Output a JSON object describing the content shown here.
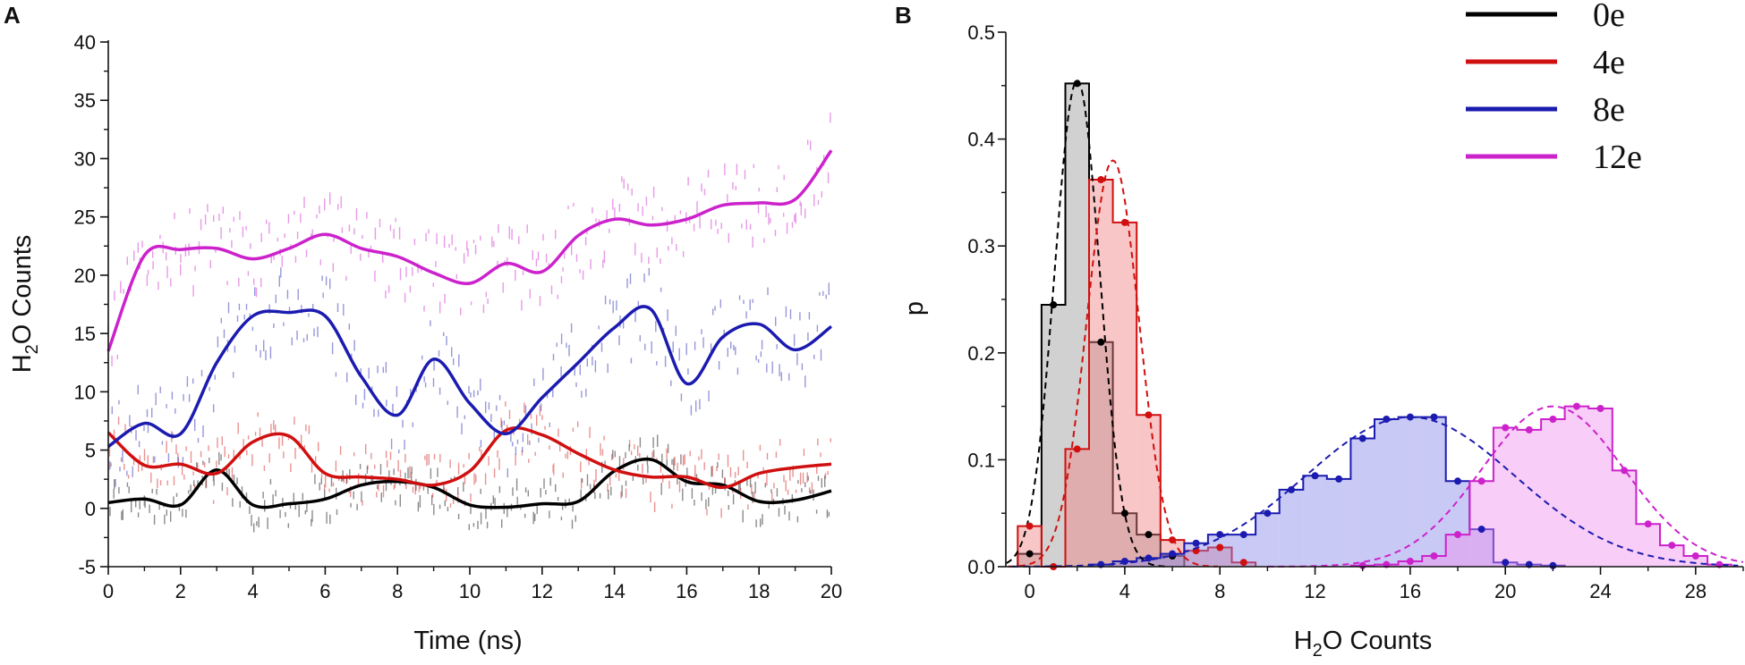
{
  "chart_data": [
    {
      "panel": "A",
      "type": "line",
      "xlabel": "Time (ns)",
      "ylabel": "H2O Counts",
      "xlim": [
        0,
        20
      ],
      "ylim": [
        -5,
        40
      ],
      "xticks": [
        0,
        2,
        4,
        6,
        8,
        10,
        12,
        14,
        16,
        18,
        20
      ],
      "yticks": [
        -5,
        0,
        5,
        10,
        15,
        20,
        25,
        30,
        35,
        40
      ],
      "series": [
        {
          "name": "0e",
          "color": "#000000",
          "x": [
            0,
            1,
            2,
            3,
            4,
            5,
            6,
            7,
            8,
            9,
            10,
            11,
            12,
            13,
            14,
            15,
            16,
            17,
            18,
            19,
            20
          ],
          "y": [
            0.5,
            0.8,
            0.3,
            3.3,
            0.3,
            0.4,
            0.8,
            2.0,
            2.3,
            1.8,
            0.3,
            0.1,
            0.4,
            0.6,
            3.2,
            4.2,
            2.3,
            2.0,
            0.6,
            0.7,
            1.5
          ]
        },
        {
          "name": "4e",
          "color": "#d01010",
          "x": [
            0,
            1,
            2,
            3,
            4,
            5,
            6,
            7,
            8,
            9,
            10,
            11,
            12,
            13,
            14,
            15,
            16,
            17,
            18,
            19,
            20
          ],
          "y": [
            6.5,
            3.7,
            3.8,
            3.0,
            5.7,
            6.2,
            3.0,
            2.7,
            2.5,
            2.0,
            3.2,
            6.7,
            6.3,
            4.7,
            3.3,
            2.7,
            2.7,
            1.8,
            3.0,
            3.5,
            3.8
          ]
        },
        {
          "name": "8e",
          "color": "#1b1bb0",
          "x": [
            0,
            1,
            2,
            3,
            4,
            5,
            6,
            7,
            8,
            9,
            10,
            11,
            12,
            13,
            14,
            15,
            16,
            17,
            18,
            19,
            20
          ],
          "y": [
            5.3,
            7.3,
            6.4,
            12.5,
            16.5,
            16.8,
            16.5,
            11.3,
            8.0,
            12.8,
            9.0,
            6.4,
            9.5,
            12.5,
            15.5,
            17.1,
            10.7,
            14.7,
            15.8,
            13.6,
            15.6
          ]
        },
        {
          "name": "12e",
          "color": "#cc22cc",
          "x": [
            0,
            1,
            2,
            3,
            4,
            5,
            6,
            7,
            8,
            9,
            10,
            11,
            12,
            13,
            14,
            15,
            16,
            17,
            18,
            19,
            20
          ],
          "y": [
            13.5,
            21.7,
            22.2,
            22.3,
            21.4,
            22.3,
            23.5,
            22.3,
            21.6,
            20.2,
            19.3,
            21.0,
            20.3,
            23.4,
            24.8,
            24.3,
            24.8,
            26.0,
            26.2,
            26.5,
            30.7
          ]
        }
      ]
    },
    {
      "panel": "B",
      "type": "bar",
      "xlabel": "H2O Counts",
      "ylabel": "p",
      "xlim": [
        -1,
        30
      ],
      "ylim": [
        0,
        0.5
      ],
      "xticks": [
        0,
        4,
        8,
        12,
        16,
        20,
        24,
        28
      ],
      "yticks": [
        0.0,
        0.1,
        0.2,
        0.3,
        0.4,
        0.5
      ],
      "ytick_labels": [
        "0.0",
        "0.1",
        "0.2",
        "0.3",
        "0.4",
        "0.5"
      ],
      "legend": {
        "placement": "top-right",
        "entries": [
          "0e",
          "4e",
          "8e",
          "12e"
        ]
      },
      "series": [
        {
          "name": "0e",
          "color": "#000000",
          "fill": "#9a9a9a",
          "x": [
            0,
            1,
            2,
            3,
            4,
            5,
            6
          ],
          "values": [
            0.012,
            0.245,
            0.452,
            0.21,
            0.05,
            0.03,
            0.01
          ],
          "fit_peak": 2.0,
          "fit_sigma": 0.95,
          "fit_amp": 0.455
        },
        {
          "name": "4e",
          "color": "#d01010",
          "fill": "#f08080",
          "x": [
            0,
            1,
            2,
            3,
            4,
            5,
            6,
            7,
            8,
            9
          ],
          "values": [
            0.038,
            0.0,
            0.11,
            0.362,
            0.322,
            0.142,
            0.025,
            0.015,
            0.018,
            0.004
          ],
          "fit_peak": 3.5,
          "fit_sigma": 1.1,
          "fit_amp": 0.38
        },
        {
          "name": "8e",
          "color": "#1b1bb0",
          "fill": "#8888e8",
          "x": [
            3,
            4,
            5,
            6,
            7,
            8,
            9,
            10,
            11,
            12,
            13,
            14,
            15,
            16,
            17,
            18,
            19,
            20,
            21,
            22
          ],
          "values": [
            0.002,
            0.005,
            0.008,
            0.012,
            0.022,
            0.03,
            0.03,
            0.05,
            0.072,
            0.085,
            0.082,
            0.12,
            0.138,
            0.14,
            0.14,
            0.08,
            0.035,
            0.004,
            0.002,
            0.001
          ],
          "fit_peak": 16.0,
          "fit_sigma": 4.4,
          "fit_amp": 0.14
        },
        {
          "name": "12e",
          "color": "#cc22cc",
          "fill": "#f090f0",
          "x": [
            14,
            15,
            16,
            17,
            18,
            19,
            20,
            21,
            22,
            23,
            24,
            25,
            26,
            27,
            28,
            29
          ],
          "values": [
            0.001,
            0.002,
            0.005,
            0.01,
            0.03,
            0.08,
            0.13,
            0.128,
            0.138,
            0.15,
            0.148,
            0.09,
            0.04,
            0.02,
            0.01,
            0.002
          ],
          "fit_peak": 22.0,
          "fit_sigma": 3.0,
          "fit_amp": 0.15
        }
      ]
    }
  ]
}
